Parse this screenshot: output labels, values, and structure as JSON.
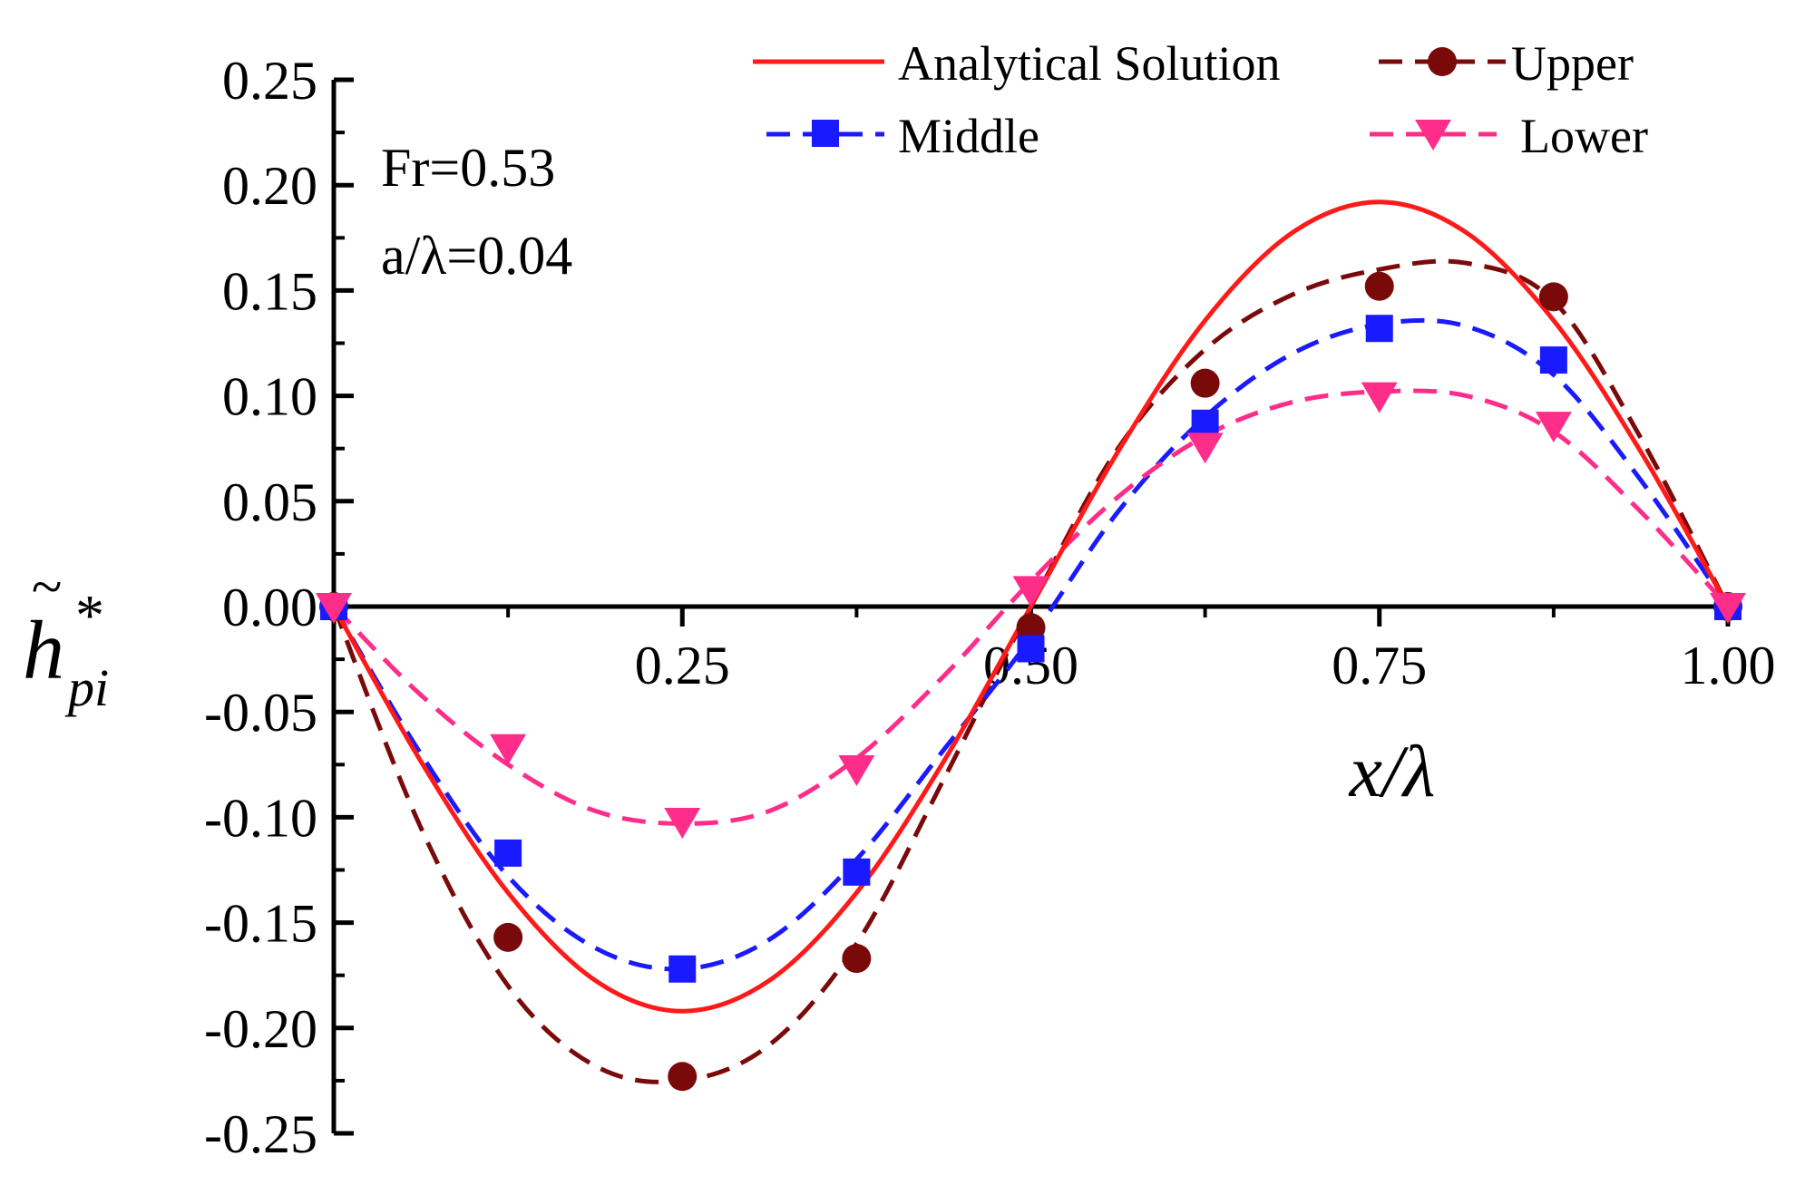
{
  "chart_data": {
    "type": "line",
    "xlabel": "x/λ",
    "ylabel": {
      "base": "h",
      "accent": "~",
      "superscript": "*",
      "subscript": "pi"
    },
    "xlim": [
      0,
      1.0
    ],
    "ylim": [
      -0.25,
      0.25
    ],
    "x_ticks": [
      0.25,
      0.5,
      0.75,
      1.0
    ],
    "x_tick_labels": [
      "0.25",
      "0.50",
      "0.75",
      "1.00"
    ],
    "y_ticks": [
      0.25,
      0.2,
      0.15,
      0.1,
      0.05,
      0.0,
      -0.05,
      -0.1,
      -0.15,
      -0.2,
      -0.25
    ],
    "y_tick_labels": [
      "0.25",
      "0.20",
      "0.15",
      "0.10",
      "0.05",
      "0.00",
      "-0.05",
      "-0.10",
      "-0.15",
      "-0.20",
      "-0.25"
    ],
    "annotations": [
      "Fr=0.53",
      "a/λ=0.04"
    ],
    "series": [
      {
        "name": "Analytical Solution",
        "color": "#ff1a1a",
        "style": "solid",
        "marker": "none",
        "x": [
          0,
          0.0625,
          0.125,
          0.1875,
          0.25,
          0.3125,
          0.375,
          0.4375,
          0.5,
          0.5625,
          0.625,
          0.6875,
          0.75,
          0.8125,
          0.875,
          0.9375,
          1.0
        ],
        "y": [
          0,
          -0.0735,
          -0.1358,
          -0.1774,
          -0.192,
          -0.1774,
          -0.1358,
          -0.0735,
          0,
          0.0735,
          0.1358,
          0.1774,
          0.192,
          0.1774,
          0.1358,
          0.0735,
          0
        ]
      },
      {
        "name": "Upper",
        "color": "#7a0a0a",
        "style": "dashed",
        "marker": "circle",
        "x": [
          0,
          0.125,
          0.25,
          0.375,
          0.5,
          0.625,
          0.75,
          0.875,
          1.0
        ],
        "y": [
          0,
          -0.157,
          -0.223,
          -0.167,
          -0.01,
          0.106,
          0.152,
          0.147,
          0
        ],
        "curve_x": [
          0,
          0.0625,
          0.125,
          0.1875,
          0.25,
          0.3125,
          0.375,
          0.4375,
          0.5,
          0.5625,
          0.625,
          0.6875,
          0.75,
          0.8125,
          0.875,
          0.9375,
          1.0
        ],
        "curve_y": [
          0,
          -0.105,
          -0.18,
          -0.218,
          -0.225,
          -0.208,
          -0.16,
          -0.082,
          0,
          0.075,
          0.122,
          0.148,
          0.16,
          0.163,
          0.145,
          0.08,
          0
        ]
      },
      {
        "name": "Middle",
        "color": "#1a1aff",
        "style": "dashed",
        "marker": "square",
        "x": [
          0,
          0.125,
          0.25,
          0.375,
          0.5,
          0.625,
          0.75,
          0.875,
          1.0
        ],
        "y": [
          0,
          -0.117,
          -0.172,
          -0.126,
          -0.02,
          0.087,
          0.132,
          0.117,
          0
        ],
        "curve_x": [
          0,
          0.0625,
          0.125,
          0.1875,
          0.25,
          0.3125,
          0.375,
          0.4375,
          0.5,
          0.5625,
          0.625,
          0.6875,
          0.75,
          0.8125,
          0.875,
          0.9375,
          1.0
        ],
        "curve_y": [
          0,
          -0.07,
          -0.128,
          -0.162,
          -0.172,
          -0.158,
          -0.12,
          -0.068,
          -0.015,
          0.045,
          0.09,
          0.12,
          0.134,
          0.133,
          0.11,
          0.06,
          0
        ]
      },
      {
        "name": "Lower",
        "color": "#ff2d8a",
        "style": "dashed",
        "marker": "triangle-down",
        "x": [
          0,
          0.125,
          0.25,
          0.375,
          0.5,
          0.625,
          0.75,
          0.875,
          1.0
        ],
        "y": [
          0,
          -0.067,
          -0.102,
          -0.077,
          0.008,
          0.076,
          0.1,
          0.086,
          0
        ],
        "curve_x": [
          0,
          0.0625,
          0.125,
          0.1875,
          0.25,
          0.3125,
          0.375,
          0.4375,
          0.5,
          0.5625,
          0.625,
          0.6875,
          0.75,
          0.8125,
          0.875,
          0.9375,
          1.0
        ],
        "curve_y": [
          0,
          -0.042,
          -0.075,
          -0.097,
          -0.103,
          -0.097,
          -0.072,
          -0.033,
          0.012,
          0.052,
          0.081,
          0.097,
          0.102,
          0.1,
          0.083,
          0.045,
          0
        ]
      }
    ]
  }
}
